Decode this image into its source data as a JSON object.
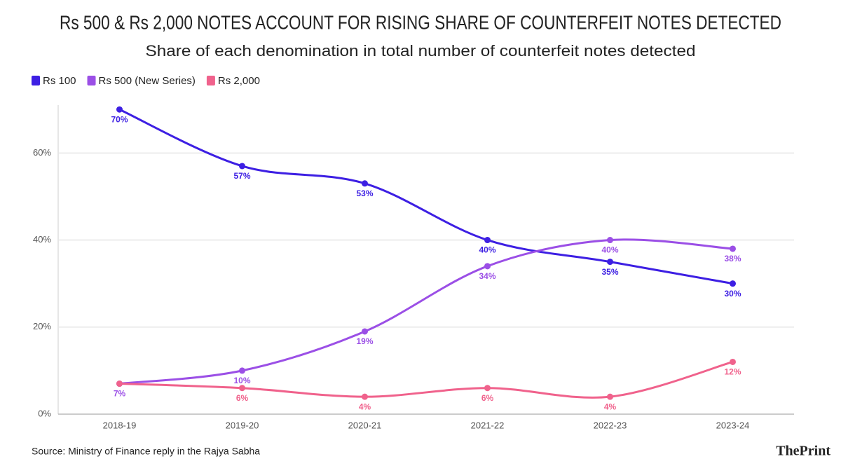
{
  "chart_data": {
    "type": "line",
    "title": "Rs 500 & Rs 2,000 NOTES ACCOUNT FOR RISING SHARE OF COUNTERFEIT NOTES  DETECTED",
    "subtitle": "Share of each denomination in total number of counterfeit notes detected",
    "categories": [
      "2018-19",
      "2019-20",
      "2020-21",
      "2021-22",
      "2022-23",
      "2023-24"
    ],
    "series": [
      {
        "name": "Rs 100",
        "color": "#3d1fe3",
        "values": [
          70,
          57,
          53,
          40,
          35,
          30
        ],
        "value_labels": [
          "70%",
          "57%",
          "53%",
          "40%",
          "35%",
          "30%"
        ]
      },
      {
        "name": "Rs 500 (New Series)",
        "color": "#9b4fe6",
        "values": [
          7,
          10,
          19,
          34,
          40,
          38
        ],
        "value_labels": [
          "7%",
          "10%",
          "19%",
          "34%",
          "40%",
          "38%"
        ]
      },
      {
        "name": "Rs 2,000",
        "color": "#f0628c",
        "values": [
          7,
          6,
          4,
          6,
          4,
          12
        ],
        "value_labels": [
          null,
          "6%",
          "4%",
          "6%",
          "4%",
          "12%"
        ]
      }
    ],
    "ylim": [
      0,
      71
    ],
    "yticks": [
      {
        "value": 0,
        "label": "0%"
      },
      {
        "value": 20,
        "label": "20%"
      },
      {
        "value": 40,
        "label": "40%"
      },
      {
        "value": 60,
        "label": "60%"
      }
    ],
    "grid": true,
    "source": "Source: Ministry of Finance reply in the Rajya Sabha",
    "brand": "ThePrint"
  }
}
